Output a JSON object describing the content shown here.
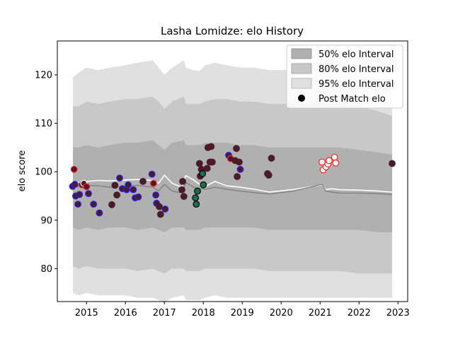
{
  "chart_data": {
    "type": "scatter",
    "title": "Lasha Lomidze: elo History",
    "xlabel": "",
    "ylabel": "elo score",
    "xlim": [
      2014.25,
      2023.25
    ],
    "ylim": [
      73.2,
      127.0
    ],
    "x_ticks": [
      2015,
      2016,
      2017,
      2018,
      2019,
      2020,
      2021,
      2022,
      2023
    ],
    "y_ticks": [
      80,
      90,
      100,
      110,
      120
    ],
    "grid": false,
    "legend_position": "top-right",
    "legend": [
      {
        "label": "50% elo Interval",
        "color": "#b0b0b0"
      },
      {
        "label": "80% elo Interval",
        "color": "#c8c8c8"
      },
      {
        "label": "95% elo Interval",
        "color": "#e0e0e0"
      },
      {
        "label": "Post Match elo",
        "color": "#000000"
      }
    ],
    "bands": {
      "x": [
        2014.65,
        2014.8,
        2015.0,
        2015.3,
        2015.6,
        2016.0,
        2016.3,
        2016.7,
        2016.85,
        2017.0,
        2017.2,
        2017.5,
        2017.55,
        2017.75,
        2017.9,
        2018.05,
        2018.3,
        2018.6,
        2018.95,
        2019.3,
        2019.7,
        2020.3,
        2021.05,
        2021.15,
        2021.3,
        2021.5,
        2022.0,
        2022.5,
        2022.85
      ],
      "p95_hi": [
        119.5,
        120.5,
        121.5,
        121.0,
        121.5,
        122.0,
        122.5,
        123.0,
        121.5,
        120.0,
        121.5,
        123.0,
        121.5,
        121.0,
        120.8,
        122.0,
        122.5,
        122.0,
        121.5,
        121.5,
        121.0,
        121.0,
        121.5,
        121.0,
        121.5,
        120.5,
        120.5,
        119.0,
        117.0
      ],
      "p80_hi": [
        113.5,
        113.5,
        114.5,
        114.0,
        114.5,
        115.0,
        115.0,
        115.5,
        114.5,
        113.0,
        114.5,
        115.5,
        114.0,
        114.0,
        114.0,
        114.5,
        115.0,
        115.0,
        114.5,
        114.5,
        114.0,
        114.0,
        114.5,
        114.0,
        114.0,
        114.0,
        113.5,
        112.5,
        111.5
      ],
      "p50_hi": [
        105.0,
        105.0,
        105.5,
        105.0,
        105.5,
        106.0,
        106.0,
        106.5,
        105.5,
        104.5,
        106.0,
        106.5,
        105.5,
        105.5,
        105.5,
        106.0,
        106.0,
        106.0,
        105.5,
        105.5,
        105.0,
        105.0,
        105.0,
        105.0,
        105.0,
        105.0,
        104.5,
        104.0,
        103.5
      ],
      "p50_lo": [
        88.5,
        88.0,
        88.5,
        88.0,
        88.5,
        88.5,
        88.0,
        88.5,
        88.0,
        87.5,
        88.5,
        88.5,
        88.0,
        88.0,
        88.0,
        88.5,
        88.5,
        88.5,
        88.5,
        88.5,
        88.0,
        88.0,
        88.0,
        88.0,
        88.0,
        88.0,
        88.0,
        87.5,
        87.5
      ],
      "p80_lo": [
        80.5,
        80.0,
        80.5,
        80.0,
        80.0,
        80.0,
        79.5,
        80.0,
        79.5,
        79.0,
        80.0,
        80.0,
        79.5,
        79.5,
        79.5,
        80.0,
        80.0,
        80.0,
        80.0,
        80.0,
        79.5,
        79.5,
        79.5,
        79.5,
        79.5,
        79.5,
        79.0,
        79.0,
        79.0
      ],
      "p95_lo": [
        75.0,
        74.5,
        75.0,
        74.5,
        74.5,
        74.5,
        74.0,
        74.0,
        73.5,
        73.0,
        74.0,
        74.5,
        73.5,
        73.5,
        73.5,
        74.0,
        74.5,
        74.0,
        74.0,
        74.0,
        74.0,
        74.0,
        74.0,
        74.0,
        74.0,
        74.0,
        74.0,
        74.0,
        74.0
      ]
    },
    "series": [
      {
        "x": [
          2014.65,
          2014.8,
          2015.0,
          2015.3,
          2015.6,
          2016.0,
          2016.3,
          2016.7,
          2016.85,
          2017.0,
          2017.2,
          2017.45,
          2017.55,
          2017.75,
          2017.9,
          2018.05,
          2018.3,
          2018.6,
          2018.95,
          2019.3,
          2019.7,
          2020.3,
          2021.05,
          2021.15,
          2021.3,
          2021.5,
          2022.0,
          2022.5,
          2022.85
        ],
        "values": [
          97.5,
          97.8,
          98.0,
          98.2,
          98.1,
          98.3,
          98.4,
          98.2,
          97.6,
          99.3,
          97.6,
          96.8,
          99.2,
          98.3,
          97.4,
          97.0,
          98.0,
          97.1,
          96.8,
          96.4,
          95.8,
          96.3,
          97.3,
          96.3,
          96.5,
          96.3,
          96.2,
          96.0,
          95.8
        ],
        "color": "#ffffff"
      },
      {
        "x": [
          2014.65,
          2014.8,
          2015.0,
          2015.3,
          2015.6,
          2016.0,
          2016.3,
          2016.7,
          2016.85,
          2017.0,
          2017.2,
          2017.45,
          2017.55,
          2017.75,
          2017.9,
          2018.05,
          2018.3,
          2018.6,
          2018.95,
          2019.3,
          2019.7,
          2020.3,
          2021.05,
          2021.15,
          2021.3,
          2021.5,
          2022.0,
          2022.5,
          2022.85
        ],
        "values": [
          96.8,
          97.0,
          97.2,
          97.1,
          96.8,
          97.0,
          97.2,
          96.8,
          96.0,
          97.4,
          96.0,
          95.6,
          97.8,
          96.8,
          96.6,
          96.4,
          96.8,
          96.4,
          96.0,
          95.7,
          95.4,
          96.0,
          97.4,
          96.0,
          95.8,
          95.6,
          95.6,
          95.5,
          95.3
        ],
        "color": "#808080"
      }
    ],
    "points": [
      {
        "x": 2014.68,
        "y": 100.5,
        "face": "#4a1c2a",
        "edge": "#ff2020"
      },
      {
        "x": 2014.64,
        "y": 97.0,
        "face": "#4a1c2a",
        "edge": "#2020ff"
      },
      {
        "x": 2014.7,
        "y": 97.4,
        "face": "#4a1c2a",
        "edge": "#2020ff"
      },
      {
        "x": 2014.72,
        "y": 95.0,
        "face": "#4a1c2a",
        "edge": "#2020ff"
      },
      {
        "x": 2014.78,
        "y": 93.3,
        "face": "#4a1c2a",
        "edge": "#2020ff"
      },
      {
        "x": 2014.82,
        "y": 95.3,
        "face": "#4a1c2a",
        "edge": "#2020ff"
      },
      {
        "x": 2014.88,
        "y": 97.3,
        "face": "#4a1c2a",
        "edge": "#ff2020"
      },
      {
        "x": 2014.93,
        "y": 97.6,
        "face": "#4a1c2a",
        "edge": "#ffffff"
      },
      {
        "x": 2015.0,
        "y": 96.9,
        "face": "#4a1c2a",
        "edge": "#ff2020"
      },
      {
        "x": 2015.05,
        "y": 95.5,
        "face": "#4a1c2a",
        "edge": "#2020ff"
      },
      {
        "x": 2015.18,
        "y": 93.3,
        "face": "#4a1c2a",
        "edge": "#2020ff"
      },
      {
        "x": 2015.33,
        "y": 91.5,
        "face": "#4a1c2a",
        "edge": "#2020ff"
      },
      {
        "x": 2015.65,
        "y": 93.2,
        "face": "#4a1c2a",
        "edge": "#4a1c2a"
      },
      {
        "x": 2015.73,
        "y": 97.2,
        "face": "#4a1c2a",
        "edge": "#4a1c2a"
      },
      {
        "x": 2015.78,
        "y": 95.2,
        "face": "#4a1c2a",
        "edge": "#4a1c2a"
      },
      {
        "x": 2015.85,
        "y": 98.7,
        "face": "#4a1c2a",
        "edge": "#2020ff"
      },
      {
        "x": 2015.92,
        "y": 96.5,
        "face": "#4a1c2a",
        "edge": "#2020ff"
      },
      {
        "x": 2016.03,
        "y": 96.3,
        "face": "#4a1c2a",
        "edge": "#2020ff"
      },
      {
        "x": 2016.07,
        "y": 97.3,
        "face": "#4a1c2a",
        "edge": "#2020ff"
      },
      {
        "x": 2016.2,
        "y": 96.3,
        "face": "#4a1c2a",
        "edge": "#2020ff"
      },
      {
        "x": 2016.25,
        "y": 94.6,
        "face": "#4a1c2a",
        "edge": "#2020ff"
      },
      {
        "x": 2016.33,
        "y": 94.8,
        "face": "#4a1c2a",
        "edge": "#2020ff"
      },
      {
        "x": 2016.45,
        "y": 98.0,
        "face": "#4a1c2a",
        "edge": "#4a1c2a"
      },
      {
        "x": 2016.68,
        "y": 99.5,
        "face": "#4a1c2a",
        "edge": "#2020ff"
      },
      {
        "x": 2016.72,
        "y": 97.6,
        "face": "#4a1c2a",
        "edge": "#ff2020"
      },
      {
        "x": 2016.78,
        "y": 95.2,
        "face": "#4a1c2a",
        "edge": "#2020ff"
      },
      {
        "x": 2016.8,
        "y": 93.5,
        "face": "#4a1c2a",
        "edge": "#2020ff"
      },
      {
        "x": 2016.87,
        "y": 92.8,
        "face": "#4a1c2a",
        "edge": "#4a1c2a"
      },
      {
        "x": 2016.9,
        "y": 91.2,
        "face": "#4a1c2a",
        "edge": "#4a1c2a"
      },
      {
        "x": 2017.02,
        "y": 92.3,
        "face": "#4a1c2a",
        "edge": "#2020ff"
      },
      {
        "x": 2017.45,
        "y": 96.3,
        "face": "#4a1c2a",
        "edge": "#4a1c2a"
      },
      {
        "x": 2017.47,
        "y": 98.0,
        "face": "#4a1c2a",
        "edge": "#4a1c2a"
      },
      {
        "x": 2017.5,
        "y": 94.9,
        "face": "#4a1c2a",
        "edge": "#4a1c2a"
      },
      {
        "x": 2017.8,
        "y": 94.6,
        "face": "#1e6e50",
        "edge": "#000000"
      },
      {
        "x": 2017.82,
        "y": 93.3,
        "face": "#1e6e50",
        "edge": "#000000"
      },
      {
        "x": 2017.85,
        "y": 96.0,
        "face": "#1e6e50",
        "edge": "#000000"
      },
      {
        "x": 2017.9,
        "y": 101.7,
        "face": "#4a1c2a",
        "edge": "#4a1c2a"
      },
      {
        "x": 2017.92,
        "y": 99.1,
        "face": "#4a1c2a",
        "edge": "#4a1c2a"
      },
      {
        "x": 2017.95,
        "y": 100.5,
        "face": "#4a1c2a",
        "edge": "#4a1c2a"
      },
      {
        "x": 2017.98,
        "y": 99.6,
        "face": "#1e6e50",
        "edge": "#000000"
      },
      {
        "x": 2018.0,
        "y": 97.3,
        "face": "#1e6e50",
        "edge": "#000000"
      },
      {
        "x": 2018.1,
        "y": 100.7,
        "face": "#4a1c2a",
        "edge": "#4a1c2a"
      },
      {
        "x": 2018.12,
        "y": 105.0,
        "face": "#4a1c2a",
        "edge": "#4a1c2a"
      },
      {
        "x": 2018.17,
        "y": 102.0,
        "face": "#4a1c2a",
        "edge": "#4a1c2a"
      },
      {
        "x": 2018.2,
        "y": 105.2,
        "face": "#4a1c2a",
        "edge": "#4a1c2a"
      },
      {
        "x": 2018.23,
        "y": 102.0,
        "face": "#4a1c2a",
        "edge": "#4a1c2a"
      },
      {
        "x": 2018.65,
        "y": 103.4,
        "face": "#4a1c2a",
        "edge": "#2020ff"
      },
      {
        "x": 2018.7,
        "y": 102.7,
        "face": "#4a1c2a",
        "edge": "#ff2020"
      },
      {
        "x": 2018.82,
        "y": 102.3,
        "face": "#4a1c2a",
        "edge": "#4a1c2a"
      },
      {
        "x": 2018.85,
        "y": 104.8,
        "face": "#4a1c2a",
        "edge": "#4a1c2a"
      },
      {
        "x": 2018.87,
        "y": 99.0,
        "face": "#4a1c2a",
        "edge": "#4a1c2a"
      },
      {
        "x": 2018.92,
        "y": 102.0,
        "face": "#4a1c2a",
        "edge": "#4a1c2a"
      },
      {
        "x": 2018.95,
        "y": 100.5,
        "face": "#4a1c2a",
        "edge": "#2020ff"
      },
      {
        "x": 2019.65,
        "y": 99.6,
        "face": "#4a1c2a",
        "edge": "#4a1c2a"
      },
      {
        "x": 2019.68,
        "y": 99.3,
        "face": "#4a1c2a",
        "edge": "#4a1c2a"
      },
      {
        "x": 2019.75,
        "y": 102.8,
        "face": "#4a1c2a",
        "edge": "#4a1c2a"
      },
      {
        "x": 2021.05,
        "y": 102.0,
        "face": "#ffffff",
        "edge": "#ff2020"
      },
      {
        "x": 2021.08,
        "y": 100.4,
        "face": "#ffffff",
        "edge": "#ff2020"
      },
      {
        "x": 2021.15,
        "y": 101.0,
        "face": "#ffffff",
        "edge": "#ff2020"
      },
      {
        "x": 2021.2,
        "y": 101.6,
        "face": "#ffffff",
        "edge": "#ff2020"
      },
      {
        "x": 2021.23,
        "y": 102.3,
        "face": "#ffffff",
        "edge": "#ff2020"
      },
      {
        "x": 2021.37,
        "y": 103.0,
        "face": "#ffffff",
        "edge": "#ff2020"
      },
      {
        "x": 2021.4,
        "y": 101.8,
        "face": "#ffffff",
        "edge": "#ff2020"
      },
      {
        "x": 2022.85,
        "y": 101.7,
        "face": "#4a1c2a",
        "edge": "#4a1c2a"
      }
    ]
  }
}
